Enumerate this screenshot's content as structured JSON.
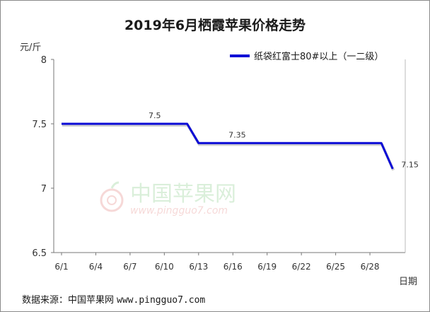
{
  "chart_data": {
    "type": "line",
    "title": "2019年6月栖霞苹果价格走势",
    "ylabel": "元/斤",
    "xlabel": "日期",
    "ylim": [
      6.5,
      8
    ],
    "yticks": [
      "6.5",
      "7",
      "7.5",
      "8"
    ],
    "xticks": [
      "6/1",
      "6/4",
      "6/7",
      "6/10",
      "6/13",
      "6/16",
      "6/19",
      "6/22",
      "6/25",
      "6/28"
    ],
    "grid": false,
    "legend_position": "top-right",
    "series": [
      {
        "name": "纸袋红富士80#以上（一二级）",
        "color": "#0a0ad6",
        "x": [
          "6/1",
          "6/2",
          "6/3",
          "6/4",
          "6/5",
          "6/6",
          "6/7",
          "6/8",
          "6/9",
          "6/10",
          "6/11",
          "6/12",
          "6/13",
          "6/14",
          "6/15",
          "6/16",
          "6/17",
          "6/18",
          "6/19",
          "6/20",
          "6/21",
          "6/22",
          "6/23",
          "6/24",
          "6/25",
          "6/26",
          "6/27",
          "6/28",
          "6/29",
          "6/30"
        ],
        "values": [
          7.5,
          7.5,
          7.5,
          7.5,
          7.5,
          7.5,
          7.5,
          7.5,
          7.5,
          7.5,
          7.5,
          7.5,
          7.35,
          7.35,
          7.35,
          7.35,
          7.35,
          7.35,
          7.35,
          7.35,
          7.35,
          7.35,
          7.35,
          7.35,
          7.35,
          7.35,
          7.35,
          7.35,
          7.35,
          7.15
        ]
      }
    ],
    "annotations": [
      {
        "x": "6/8",
        "value": "7.5"
      },
      {
        "x": "6/15",
        "value": "7.35"
      },
      {
        "x": "6/30",
        "value": "7.15"
      }
    ]
  },
  "footer": {
    "source_label": "数据来源：中国苹果网",
    "source_site": "www.pingguo7.com"
  },
  "watermark": {
    "name": "中国苹果网",
    "url": "www.pingguo7.com"
  }
}
